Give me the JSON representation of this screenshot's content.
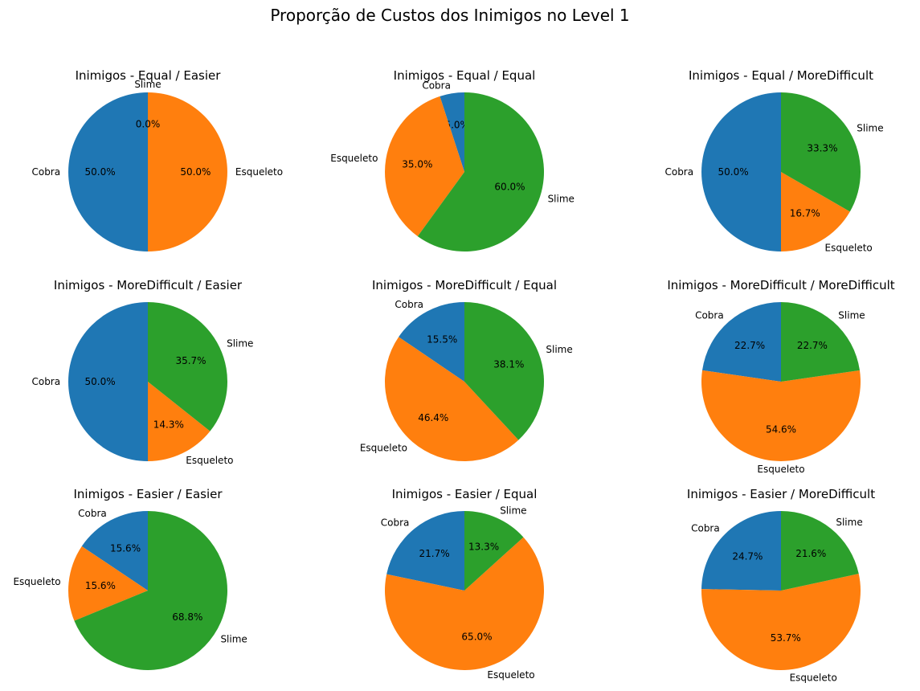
{
  "title": "Proporção de Custos dos Inimigos no Level 1",
  "colors": {
    "Cobra": "#1f77b4",
    "Esqueleto": "#ff7f0e",
    "Slime": "#2ca02c"
  },
  "chart_data": [
    {
      "type": "pie",
      "title": "Inimigos - Equal / Easier",
      "labels": [
        "Cobra",
        "Esqueleto",
        "Slime"
      ],
      "values": [
        50.0,
        50.0,
        0.0
      ]
    },
    {
      "type": "pie",
      "title": "Inimigos - Equal / Equal",
      "labels": [
        "Cobra",
        "Esqueleto",
        "Slime"
      ],
      "values": [
        5.0,
        35.0,
        60.0
      ]
    },
    {
      "type": "pie",
      "title": "Inimigos - Equal / MoreDifficult",
      "labels": [
        "Cobra",
        "Esqueleto",
        "Slime"
      ],
      "values": [
        50.0,
        16.7,
        33.3
      ]
    },
    {
      "type": "pie",
      "title": "Inimigos - MoreDifficult / Easier",
      "labels": [
        "Cobra",
        "Esqueleto",
        "Slime"
      ],
      "values": [
        50.0,
        14.3,
        35.7
      ]
    },
    {
      "type": "pie",
      "title": "Inimigos - MoreDifficult / Equal",
      "labels": [
        "Cobra",
        "Esqueleto",
        "Slime"
      ],
      "values": [
        15.5,
        46.4,
        38.1
      ]
    },
    {
      "type": "pie",
      "title": "Inimigos - MoreDifficult / MoreDifficult",
      "labels": [
        "Cobra",
        "Esqueleto",
        "Slime"
      ],
      "values": [
        22.7,
        54.5,
        22.7
      ]
    },
    {
      "type": "pie",
      "title": "Inimigos - Easier / Easier",
      "labels": [
        "Cobra",
        "Esqueleto",
        "Slime"
      ],
      "values": [
        15.6,
        15.6,
        68.8
      ]
    },
    {
      "type": "pie",
      "title": "Inimigos - Easier / Equal",
      "labels": [
        "Cobra",
        "Esqueleto",
        "Slime"
      ],
      "values": [
        21.7,
        65.0,
        13.3
      ]
    },
    {
      "type": "pie",
      "title": "Inimigos - Easier / MoreDifficult",
      "labels": [
        "Cobra",
        "Esqueleto",
        "Slime"
      ],
      "values": [
        24.7,
        53.7,
        21.6
      ]
    }
  ]
}
